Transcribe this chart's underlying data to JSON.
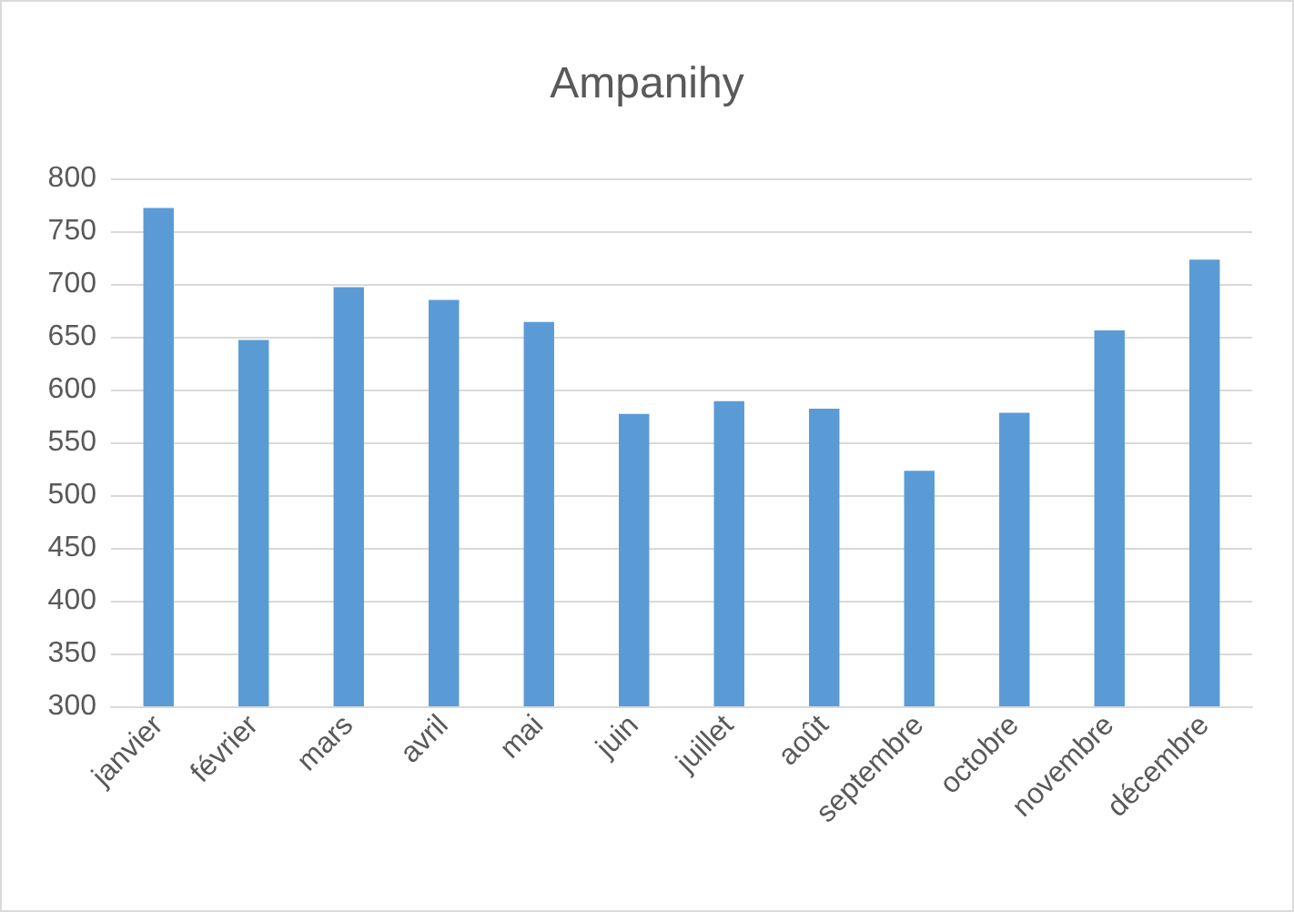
{
  "chart_data": {
    "type": "bar",
    "title": "Ampanihy",
    "categories": [
      "janvier",
      "février",
      "mars",
      "avril",
      "mai",
      "juin",
      "juillet",
      "août",
      "septembre",
      "octobre",
      "novembre",
      "décembre"
    ],
    "values": [
      772,
      647,
      697,
      685,
      664,
      577,
      589,
      582,
      523,
      578,
      656,
      723
    ],
    "color": "#5b9bd5",
    "ylim": [
      300,
      800
    ],
    "yticks": [
      300,
      350,
      400,
      450,
      500,
      550,
      600,
      650,
      700,
      750,
      800
    ],
    "grid": "y"
  }
}
